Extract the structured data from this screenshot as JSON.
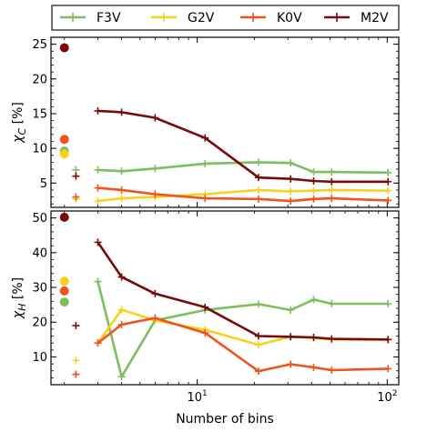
{
  "chart_data": [
    {
      "type": "line",
      "panel": "top",
      "ylabel": "χ_C [%]",
      "ylim": [
        1.5,
        26
      ],
      "yticks": [
        5,
        10,
        15,
        20,
        25
      ],
      "xscale": "log",
      "xlim": [
        1.7,
        115
      ],
      "x": [
        3,
        4,
        6,
        11,
        21,
        31,
        41,
        51,
        101
      ],
      "series": [
        {
          "name": "F3V",
          "color": "#7dbf5f",
          "values": [
            6.9,
            6.7,
            7.1,
            7.8,
            8.0,
            7.9,
            6.6,
            6.6,
            6.5
          ],
          "single_marker": {
            "x": 2.0,
            "y": 9.6
          },
          "plus_marker": {
            "x": 2.3,
            "y": 6.9
          }
        },
        {
          "name": "G2V",
          "color": "#f5d21c",
          "values": [
            2.4,
            2.8,
            3.0,
            3.4,
            4.0,
            3.8,
            3.9,
            4.0,
            3.9
          ],
          "single_marker": {
            "x": 2.0,
            "y": 9.2
          },
          "plus_marker": {
            "x": 2.3,
            "y": 2.7
          }
        },
        {
          "name": "K0V",
          "color": "#f0531b",
          "values": [
            4.3,
            4.0,
            3.4,
            2.8,
            2.7,
            2.4,
            2.7,
            2.8,
            2.5
          ],
          "single_marker": {
            "x": 2.0,
            "y": 11.3
          },
          "plus_marker": {
            "x": 2.3,
            "y": 3.0
          }
        },
        {
          "name": "M2V",
          "color": "#7a0a0a",
          "values": [
            15.4,
            15.2,
            14.4,
            11.5,
            5.8,
            5.6,
            5.3,
            5.2,
            5.2
          ],
          "single_marker": {
            "x": 2.0,
            "y": 24.5
          },
          "plus_marker": {
            "x": 2.3,
            "y": 6.0
          }
        }
      ]
    },
    {
      "type": "line",
      "panel": "bottom",
      "ylabel": "χ_H [%]",
      "xlabel": "Number of bins",
      "ylim": [
        2,
        52
      ],
      "yticks": [
        10,
        20,
        30,
        40,
        50
      ],
      "xscale": "log",
      "xlim": [
        1.7,
        115
      ],
      "xticks": [
        10,
        100
      ],
      "xticklabels": [
        "10^1",
        "10^2"
      ],
      "x": [
        3,
        4,
        6,
        11,
        21,
        31,
        41,
        51,
        101
      ],
      "series": [
        {
          "name": "F3V",
          "color": "#7dbf5f",
          "values": [
            31.7,
            4.3,
            20.5,
            23.5,
            25.2,
            23.5,
            26.5,
            25.3,
            25.3
          ],
          "single_marker": {
            "x": 2.0,
            "y": 25.8
          },
          "plus_marker": {
            "x": 2.3,
            "y": 5.0
          }
        },
        {
          "name": "G2V",
          "color": "#f5d21c",
          "values": [
            14.0,
            23.6,
            20.5,
            17.8,
            13.5,
            15.8,
            15.5,
            15.0,
            15.0
          ],
          "single_marker": {
            "x": 2.0,
            "y": 31.8
          },
          "plus_marker": {
            "x": 2.3,
            "y": 9.0
          }
        },
        {
          "name": "K0V",
          "color": "#f0531b",
          "values": [
            14.0,
            19.3,
            21.2,
            16.9,
            5.9,
            7.9,
            7.0,
            6.2,
            6.6
          ],
          "single_marker": {
            "x": 2.0,
            "y": 29.0
          },
          "plus_marker": {
            "x": 2.3,
            "y": 5.0
          }
        },
        {
          "name": "M2V",
          "color": "#7a0a0a",
          "values": [
            43.0,
            33.0,
            28.2,
            24.3,
            16.0,
            15.8,
            15.6,
            15.2,
            15.0
          ],
          "single_marker": {
            "x": 2.0,
            "y": 50.2
          },
          "plus_marker": {
            "x": 2.3,
            "y": 19.0
          }
        }
      ]
    }
  ],
  "legend": {
    "placement": "top",
    "entries": [
      "F3V",
      "G2V",
      "K0V",
      "M2V"
    ]
  }
}
